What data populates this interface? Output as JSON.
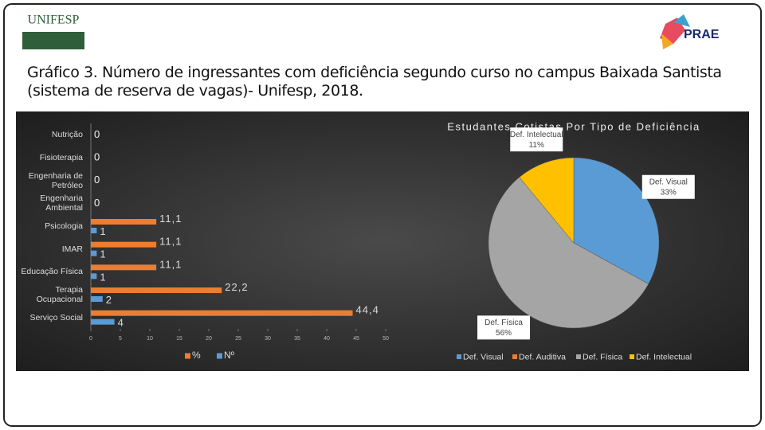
{
  "header": {
    "title": "Gráfico 3. Número de ingressantes com deficiência segundo curso no campus Baixada Santista (sistema de reserva de vagas)- Unifesp, 2018.",
    "logo_left": "UNIFESP",
    "logo_right": "PRAE"
  },
  "chart_data": [
    {
      "type": "hbar",
      "categories": [
        "Nutrição",
        "Fisioterapia",
        "Engenharia de Petróleo",
        "Engenharia Ambiental",
        "Psicologia",
        "IMAR",
        "Educação Física",
        "Terapia Ocupacional",
        "Serviço Social"
      ],
      "series": [
        {
          "name": "%",
          "color": "#ed7d31",
          "values": [
            0,
            0,
            0,
            0,
            11.1,
            11.1,
            11.1,
            22.2,
            44.4
          ],
          "value_labels": [
            "0",
            "0",
            "0",
            "0",
            "11,1",
            "11,1",
            "11,1",
            "22,2",
            "44,4"
          ]
        },
        {
          "name": "Nº",
          "color": "#5b9bd5",
          "values": [
            0,
            0,
            0,
            0,
            1,
            1,
            1,
            2,
            4
          ]
        }
      ],
      "xlim": [
        0,
        50
      ],
      "xticks": [
        0,
        5,
        10,
        15,
        20,
        25,
        30,
        35,
        40,
        45,
        50
      ],
      "legend": "bottom"
    },
    {
      "type": "pie",
      "title": "Estudantes Cotistas Por Tipo de Deficiência",
      "categories": [
        "Def. Visual",
        "Def. Auditiva",
        "Def. Física",
        "Def. Intelectual"
      ],
      "values": [
        33,
        0,
        56,
        11
      ],
      "value_labels": [
        "33%",
        null,
        "56%",
        "11%"
      ],
      "colors": [
        "#5b9bd5",
        "#ed7d31",
        "#a5a5a5",
        "#ffc000"
      ],
      "legend": "bottom"
    }
  ]
}
